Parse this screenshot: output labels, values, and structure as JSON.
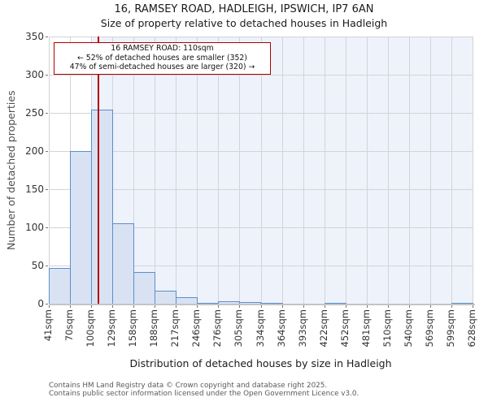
{
  "title": "16, RAMSEY ROAD, HADLEIGH, IPSWICH, IP7 6AN",
  "subtitle": "Size of property relative to detached houses in Hadleigh",
  "annotation": {
    "line1": "16 RAMSEY ROAD: 110sqm",
    "line2": "← 52% of detached houses are smaller (352)",
    "line3": "47% of semi-detached houses are larger (320) →"
  },
  "chart_data": {
    "type": "bar",
    "title": "Size of property relative to detached houses in Hadleigh",
    "xlabel": "Distribution of detached houses by size in Hadleigh",
    "ylabel": "Number of detached properties",
    "xlim": [
      41,
      628
    ],
    "ylim": [
      0,
      350
    ],
    "yticks": [
      0,
      50,
      100,
      150,
      200,
      250,
      300,
      350
    ],
    "x_tick_labels": [
      "41sqm",
      "70sqm",
      "100sqm",
      "129sqm",
      "158sqm",
      "188sqm",
      "217sqm",
      "246sqm",
      "276sqm",
      "305sqm",
      "334sqm",
      "364sqm",
      "393sqm",
      "422sqm",
      "452sqm",
      "481sqm",
      "510sqm",
      "540sqm",
      "569sqm",
      "599sqm",
      "628sqm"
    ],
    "bin_edges_sqm": [
      41,
      70,
      100,
      129,
      158,
      188,
      217,
      246,
      276,
      305,
      334,
      364,
      393,
      422,
      452,
      481,
      510,
      540,
      569,
      599,
      628
    ],
    "values": [
      47,
      200,
      254,
      105,
      41,
      17,
      9,
      1,
      3,
      2,
      1,
      0,
      0,
      1,
      0,
      0,
      0,
      0,
      0,
      1
    ],
    "marker_value_sqm": 110,
    "highlight_from_sqm": 100,
    "grid": true,
    "legend": "none",
    "colors": {
      "bar_fill": "#d9e2f3",
      "bar_edge": "#5b8fc9",
      "shade": "#eef2fb",
      "grid": "#d3d4d8",
      "axis_line": "#c3c4c8",
      "marker": "#b00000",
      "annotation_border": "#b00000"
    }
  },
  "footer": {
    "line1": "Contains HM Land Registry data © Crown copyright and database right 2025.",
    "line2": "Contains public sector information licensed under the Open Government Licence v3.0."
  }
}
